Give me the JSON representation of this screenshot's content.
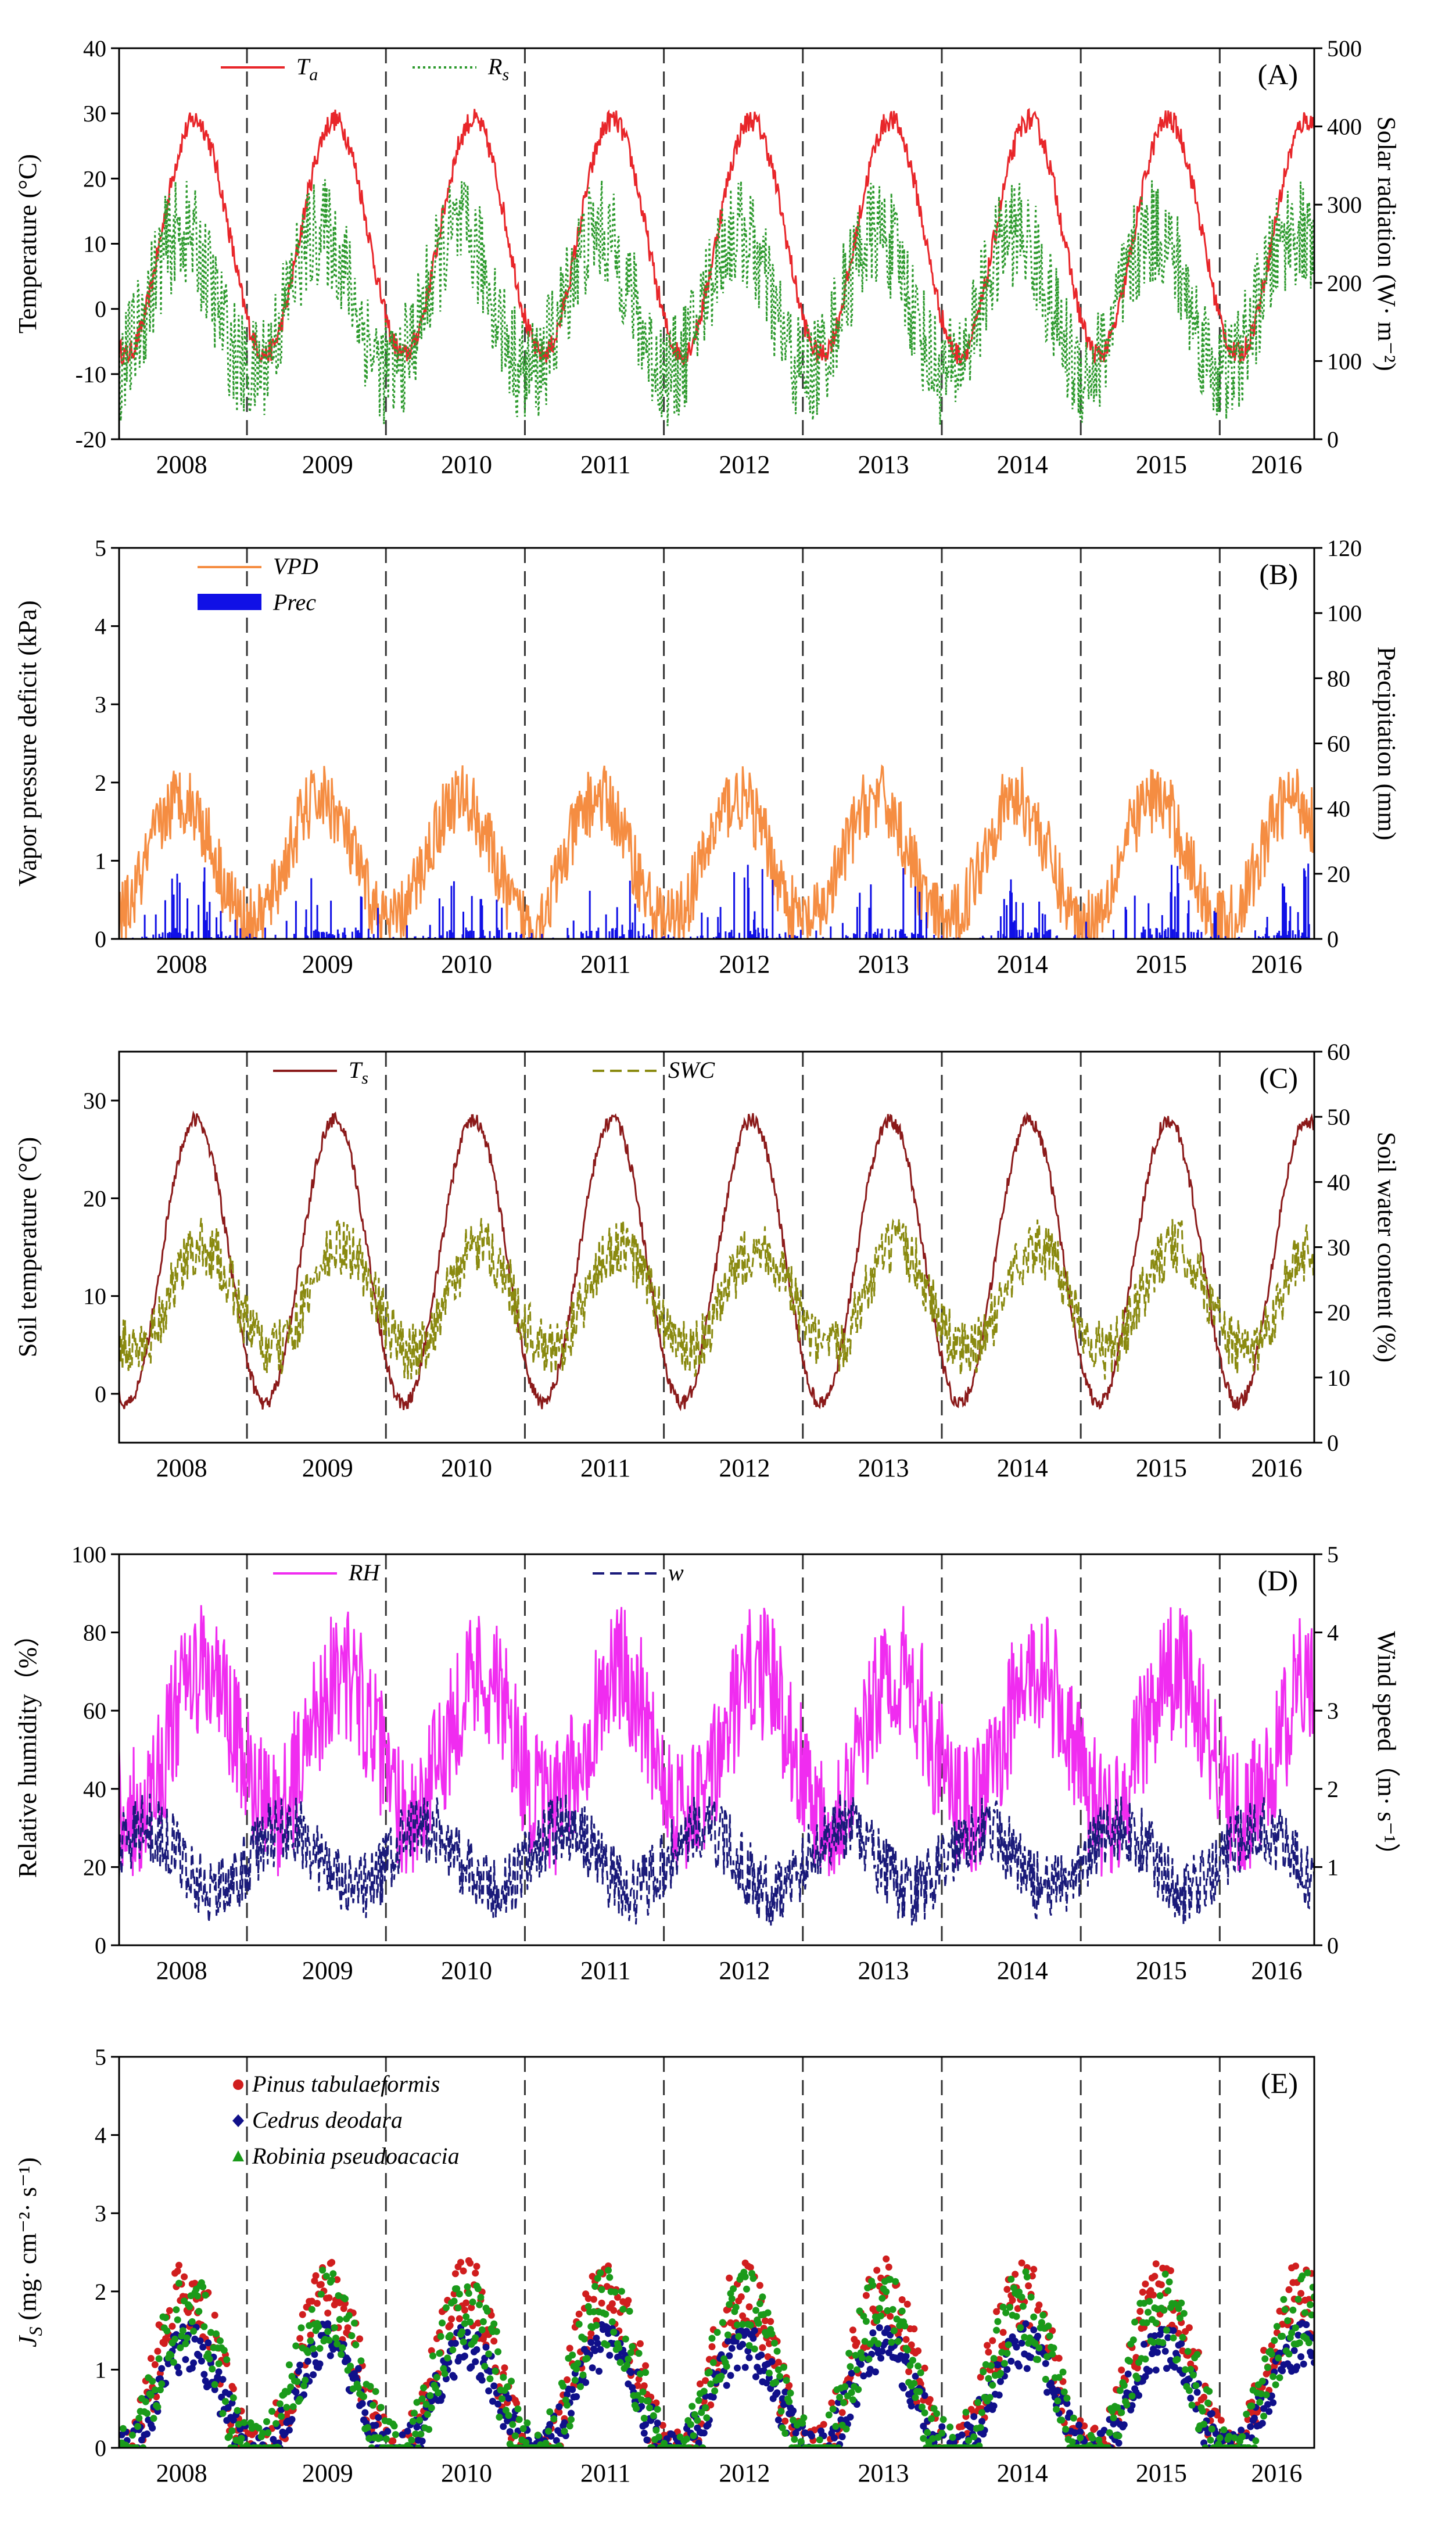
{
  "chart_data": [
    {
      "type": "line",
      "panel": "(A)",
      "ylabel_left": "Temperature (°C)",
      "ylabel_right": "Solar radiation (W· m⁻²)",
      "ylim_left": [
        -20,
        40
      ],
      "ylim_right": [
        0,
        500
      ],
      "yticks_left": [
        -20,
        -10,
        0,
        10,
        20,
        30,
        40
      ],
      "yticks_right": [
        0,
        100,
        200,
        300,
        400,
        500
      ],
      "legend": [
        {
          "key": "Ta",
          "base": "T",
          "sub": "a",
          "color": "#e8262a",
          "style": "solid"
        },
        {
          "key": "Rs",
          "base": "R",
          "sub": "s",
          "color": "#2e9a2e",
          "style": "dotted"
        }
      ],
      "series": [
        {
          "name": "Ta",
          "axis": "left",
          "color": "#e8262a",
          "model": {
            "mean": 11,
            "amp": 18,
            "noise": 3.5,
            "peak_frac": 0.55
          }
        },
        {
          "name": "Rs",
          "axis": "right",
          "color": "#2e9a2e",
          "model": {
            "mean": 175,
            "amp": 90,
            "noise": 140,
            "peak_frac": 0.45
          }
        }
      ]
    },
    {
      "type": "line",
      "panel": "(B)",
      "ylabel_left": "Vapor pressure deficit (kPa)",
      "ylabel_right": "Precipitation (mm)",
      "ylim_left": [
        0,
        5
      ],
      "ylim_right": [
        0,
        120
      ],
      "yticks_left": [
        0,
        1,
        2,
        3,
        4,
        5
      ],
      "yticks_right": [
        0,
        20,
        40,
        60,
        80,
        100,
        120
      ],
      "legend": [
        {
          "key": "VPD",
          "base": "VPD",
          "sub": "",
          "color": "#f58d42",
          "style": "solid"
        },
        {
          "key": "Prec",
          "base": "Prec",
          "sub": "",
          "color": "#1010e6",
          "style": "bar"
        }
      ],
      "series": [
        {
          "name": "VPD",
          "axis": "left",
          "color": "#f58d42",
          "model": {
            "mean": 1.0,
            "amp": 0.8,
            "noise": 0.9,
            "peak_frac": 0.45
          }
        },
        {
          "name": "Prec",
          "axis": "right",
          "color": "#1010e6",
          "model": {
            "mean": 12,
            "amp": 10,
            "noise": 45,
            "peak_frac": 0.55
          }
        }
      ]
    },
    {
      "type": "line",
      "panel": "(C)",
      "ylabel_left": "Soil temperature (°C)",
      "ylabel_right": "Soil water content (%)",
      "ylim_left": [
        -5,
        35
      ],
      "ylim_right": [
        0,
        60
      ],
      "yticks_left": [
        0,
        10,
        20,
        30
      ],
      "yticks_right": [
        0,
        10,
        20,
        30,
        40,
        50,
        60
      ],
      "legend": [
        {
          "key": "Ts",
          "base": "T",
          "sub": "s",
          "color": "#8b1a1a",
          "style": "solid"
        },
        {
          "key": "SWC",
          "base": "SWC",
          "sub": "",
          "color": "#8a8a10",
          "style": "dashed"
        }
      ],
      "series": [
        {
          "name": "Ts",
          "axis": "left",
          "color": "#8b1a1a",
          "model": {
            "mean": 13.5,
            "amp": 14.5,
            "noise": 1.5,
            "peak_frac": 0.55
          }
        },
        {
          "name": "SWC",
          "axis": "right",
          "color": "#8a8a10",
          "model": {
            "mean": 22,
            "amp": 8,
            "noise": 9,
            "peak_frac": 0.6
          }
        }
      ]
    },
    {
      "type": "line",
      "panel": "(D)",
      "ylabel_left": "Relative humidity（%）",
      "ylabel_right": "Wind speed（m· s⁻¹）",
      "ylim_left": [
        0,
        100
      ],
      "ylim_right": [
        0,
        5
      ],
      "yticks_left": [
        0,
        20,
        40,
        60,
        80,
        100
      ],
      "yticks_right": [
        0,
        1,
        2,
        3,
        4,
        5
      ],
      "legend": [
        {
          "key": "RH",
          "base": "RH",
          "sub": "",
          "color": "#f02cf0",
          "style": "solid"
        },
        {
          "key": "w",
          "base": "w",
          "sub": "",
          "color": "#1a1a7a",
          "style": "dashed"
        }
      ],
      "series": [
        {
          "name": "RH",
          "axis": "left",
          "color": "#f02cf0",
          "model": {
            "mean": 52,
            "amp": 18,
            "noise": 35,
            "peak_frac": 0.6
          }
        },
        {
          "name": "w",
          "axis": "right",
          "color": "#1a1a7a",
          "model": {
            "mean": 1.1,
            "amp": 0.4,
            "noise": 0.9,
            "peak_frac": 0.2
          }
        }
      ]
    },
    {
      "type": "scatter",
      "panel": "(E)",
      "ylabel_left": "JS (mg· cm⁻²· s⁻¹)",
      "ylabel_base": "J",
      "ylabel_sub": "S",
      "ylabel_units": " (mg· cm⁻²· s⁻¹)",
      "ylim_left": [
        0,
        5
      ],
      "yticks_left": [
        0,
        1,
        2,
        3,
        4,
        5
      ],
      "legend": [
        {
          "key": "Pinus tabulaeformis",
          "base": "Pinus tabulaeformis",
          "sub": "",
          "color": "#d01e1e",
          "style": "circle"
        },
        {
          "key": "Cedrus deodara",
          "base": "Cedrus deodara",
          "sub": "",
          "color": "#10108a",
          "style": "diamond"
        },
        {
          "key": "Robinia pseudoacacia",
          "base": "Robinia pseudoacacia",
          "sub": "",
          "color": "#1a9a1a",
          "style": "triangle"
        }
      ],
      "series": [
        {
          "name": "Pinus tabulaeformis",
          "axis": "left",
          "color": "#d01e1e",
          "model": {
            "mean": 0.9,
            "amp": 1.1,
            "noise": 0.9,
            "peak_frac": 0.5
          }
        },
        {
          "name": "Cedrus deodara",
          "axis": "left",
          "color": "#10108a",
          "model": {
            "mean": 0.6,
            "amp": 0.7,
            "noise": 0.6,
            "peak_frac": 0.5
          }
        },
        {
          "name": "Robinia pseudoacacia",
          "axis": "left",
          "color": "#1a9a1a",
          "model": {
            "mean": 0.8,
            "amp": 1.0,
            "noise": 1.0,
            "peak_frac": 0.5
          }
        }
      ]
    }
  ],
  "x_axis": {
    "years": [
      "2008",
      "2009",
      "2010",
      "2011",
      "2012",
      "2013",
      "2014",
      "2015",
      "2016"
    ],
    "range_years": [
      2008.0,
      2016.6
    ],
    "dashed_dividers": [
      2008.92,
      2009.92,
      2010.92,
      2011.92,
      2012.92,
      2013.92,
      2014.92,
      2015.92
    ],
    "year_label_positions": [
      2008.45,
      2009.5,
      2010.5,
      2011.5,
      2012.5,
      2013.5,
      2014.5,
      2015.5,
      2016.33
    ]
  },
  "colors": {
    "axis": "#000000",
    "divider": "#333333"
  }
}
